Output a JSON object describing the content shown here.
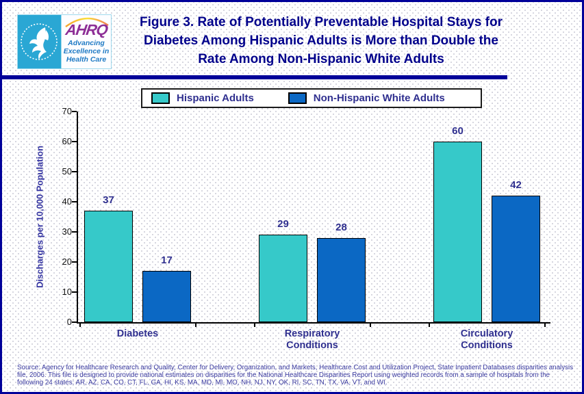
{
  "header": {
    "logo": {
      "ahrq_acronym": "AHRQ",
      "ahrq_tagline": "Advancing Excellence in Health Care"
    },
    "title_lines": [
      "Figure 3. Rate of Potentially Preventable Hospital Stays for",
      "Diabetes Among Hispanic Adults is More than Double the",
      "Rate Among Non-Hispanic White Adults"
    ]
  },
  "legend": {
    "items": [
      {
        "label": "Hispanic Adults",
        "color": "#36c9c9"
      },
      {
        "label": "Non-Hispanic White Adults",
        "color": "#0b68c4"
      }
    ]
  },
  "chart_data": {
    "type": "bar",
    "title": "Figure 3. Rate of Potentially Preventable Hospital Stays for Diabetes Among Hispanic Adults is More than Double the Rate Among Non-Hispanic White Adults",
    "categories": [
      "Diabetes",
      "Respiratory Conditions",
      "Circulatory Conditions"
    ],
    "series": [
      {
        "name": "Hispanic Adults",
        "color": "#36c9c9",
        "values": [
          37,
          29,
          60
        ]
      },
      {
        "name": "Non-Hispanic White Adults",
        "color": "#0b68c4",
        "values": [
          17,
          28,
          42
        ]
      }
    ],
    "xlabel": "",
    "ylabel": "Discharges per 10,000 Population",
    "ylim": [
      0,
      70
    ],
    "yticks": [
      0,
      10,
      20,
      30,
      40,
      50,
      60,
      70
    ],
    "grid": false,
    "legend_position": "top",
    "value_labels": true,
    "bar_edge_color": "#000000"
  },
  "source": "Source: Agency for Healthcare Research and Quality, Center for Delivery, Organization, and Markets, Healthcare Cost and Utilization Project, State Inpatient Databases disparities analysis file, 2006. This file is designed to provide national estimates on disparities for the National Healthcare Disparities Report using weighted records from a sample of hospitals from the following 24 states: AR, AZ, CA, CO, CT, FL, GA, HI, KS, MA, MD, MI, MO, NH, NJ, NY, OK, RI, SC, TN, TX, VA, VT, and WI."
}
